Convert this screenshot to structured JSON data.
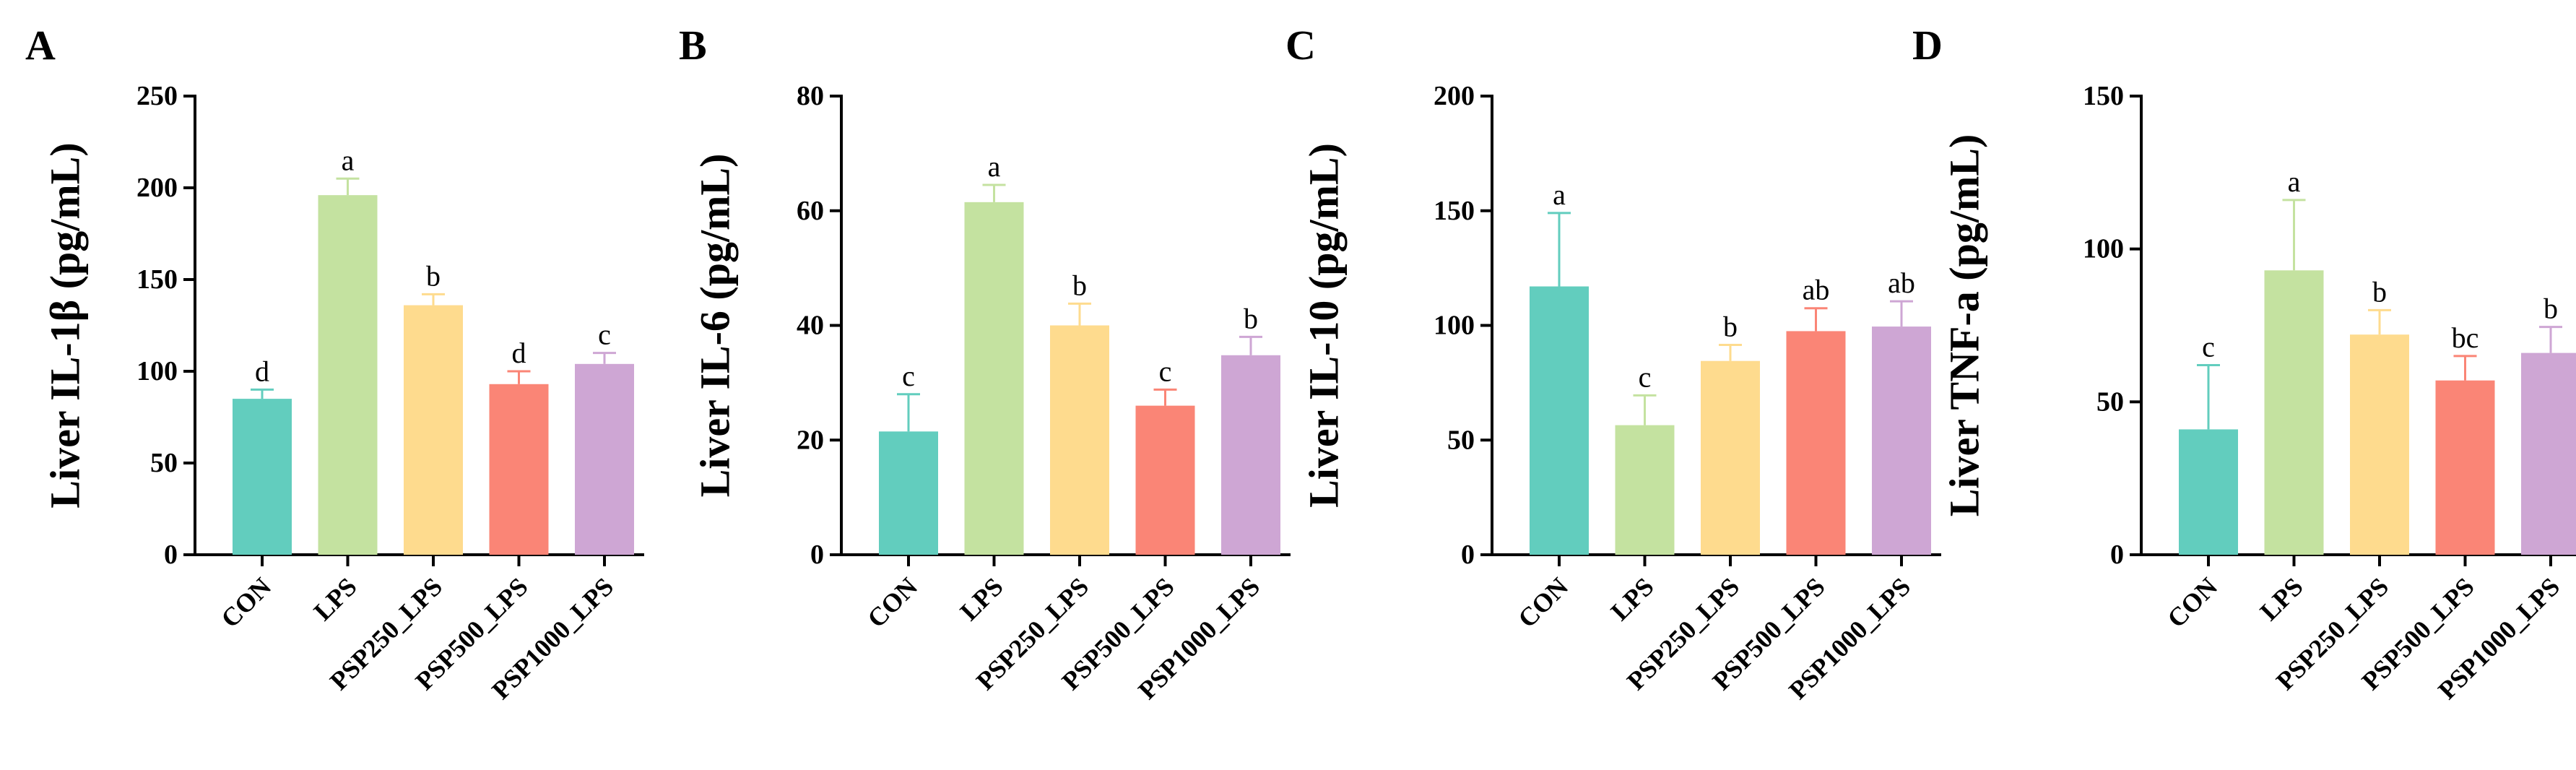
{
  "colors": {
    "CON": "#62CDBE",
    "LPS": "#C4E2A0",
    "PSP250_LPS": "#FEDB8E",
    "PSP500_LPS": "#FA8576",
    "PSP1000_LPS": "#CEA6D4"
  },
  "chart_data": [
    {
      "panel": "A",
      "type": "bar",
      "ylabel": "Liver IL-1β (pg/mL)",
      "ylim": [
        0,
        250
      ],
      "yticks": [
        "0",
        "50",
        "100",
        "150",
        "200",
        "250"
      ],
      "categories": [
        "CON",
        "LPS",
        "PSP250_LPS",
        "PSP500_LPS",
        "PSP1000_LPS"
      ],
      "values": [
        85,
        196,
        136,
        93,
        104
      ],
      "errors": [
        5,
        9,
        6,
        7,
        6
      ],
      "significance": [
        "d",
        "a",
        "b",
        "d",
        "c"
      ]
    },
    {
      "panel": "B",
      "type": "bar",
      "ylabel": "Liver IL-6 (pg/mL)",
      "ylim": [
        0,
        80
      ],
      "yticks": [
        "0",
        "20",
        "40",
        "60",
        "80"
      ],
      "categories": [
        "CON",
        "LPS",
        "PSP250_LPS",
        "PSP500_LPS",
        "PSP1000_LPS"
      ],
      "values": [
        21.5,
        61.5,
        40,
        26,
        34.8
      ],
      "errors": [
        6.5,
        3,
        3.8,
        2.8,
        3.2
      ],
      "significance": [
        "c",
        "a",
        "b",
        "c",
        "b"
      ]
    },
    {
      "panel": "C",
      "type": "bar",
      "ylabel": "Liver IL-10 (pg/mL)",
      "ylim": [
        0,
        200
      ],
      "yticks": [
        "0",
        "50",
        "100",
        "150",
        "200"
      ],
      "categories": [
        "CON",
        "LPS",
        "PSP250_LPS",
        "PSP500_LPS",
        "PSP1000_LPS"
      ],
      "values": [
        117,
        56.5,
        84.5,
        97.5,
        99.5
      ],
      "errors": [
        32,
        13,
        7,
        10,
        11
      ],
      "significance": [
        "a",
        "c",
        "b",
        "ab",
        "ab"
      ]
    },
    {
      "panel": "D",
      "type": "bar",
      "ylabel": "Liver TNF-a (pg/mL)",
      "ylim": [
        0,
        150
      ],
      "yticks": [
        "0",
        "50",
        "100",
        "150"
      ],
      "categories": [
        "CON",
        "LPS",
        "PSP250_LPS",
        "PSP500_LPS",
        "PSP1000_LPS"
      ],
      "values": [
        41,
        93,
        72,
        57,
        66
      ],
      "errors": [
        21,
        23,
        8,
        8,
        8.5
      ],
      "significance": [
        "c",
        "a",
        "b",
        "bc",
        "b"
      ]
    }
  ]
}
